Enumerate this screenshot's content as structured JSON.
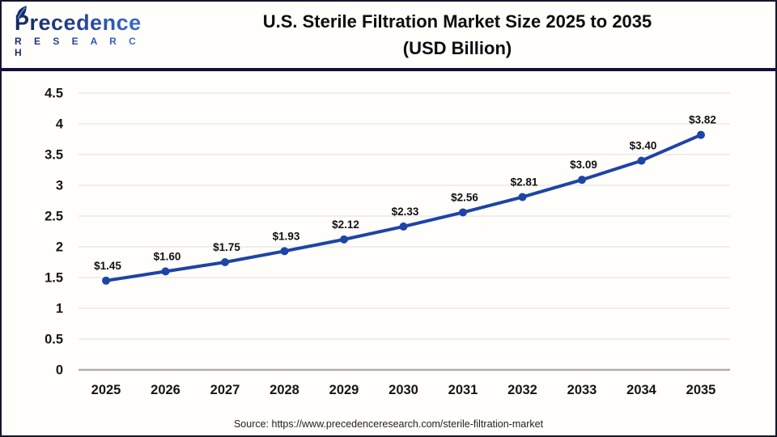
{
  "logo": {
    "name": "Precedence",
    "subtitle": "R E S E A R C H"
  },
  "header": {
    "title_line1": "U.S. Sterile Filtration Market Size 2025 to 2035",
    "title_line2": "(USD Billion)"
  },
  "footer": {
    "source": "Source: https://www.precedenceresearch.com/sterile-filtration-market"
  },
  "chart_data": {
    "type": "line",
    "title": "U.S. Sterile Filtration Market Size 2025 to 2035 (USD Billion)",
    "categories": [
      "2025",
      "2026",
      "2027",
      "2028",
      "2029",
      "2030",
      "2031",
      "2032",
      "2033",
      "2034",
      "2035"
    ],
    "values": [
      1.45,
      1.6,
      1.75,
      1.93,
      2.12,
      2.33,
      2.56,
      2.81,
      3.09,
      3.4,
      3.82
    ],
    "point_labels": [
      "$1.45",
      "$1.60",
      "$1.75",
      "$1.93",
      "$2.12",
      "$2.33",
      "$2.56",
      "$2.81",
      "$3.09",
      "$3.40",
      "$3.82"
    ],
    "xlabel": "",
    "ylabel": "",
    "ylim": [
      0,
      4.5
    ],
    "ytick_step": 0.5,
    "ytick_labels": [
      "0",
      "0.5",
      "1",
      "1.5",
      "2",
      "2.5",
      "3",
      "3.5",
      "4",
      "4.5"
    ],
    "grid": true,
    "legend": "none",
    "colors": {
      "line": "#1e44a5",
      "marker": "#1e44a5",
      "grid": "#e4e4e4",
      "baseline": "#b0b0b0",
      "tick_text": "#161616",
      "data_label_text": "#111111"
    }
  }
}
